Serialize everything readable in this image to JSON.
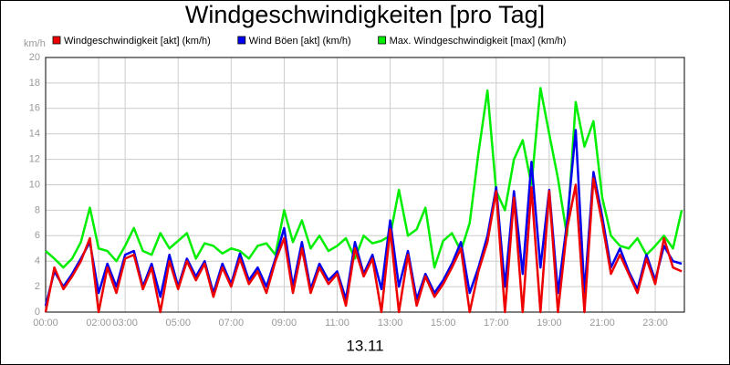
{
  "chart_data": {
    "type": "line",
    "title": "Windgeschwindigkeiten [pro Tag]",
    "y_unit": "km/h",
    "x_label": "13.11",
    "x": [
      0,
      0.33,
      0.67,
      1,
      1.33,
      1.67,
      2,
      2.33,
      2.67,
      3,
      3.33,
      3.67,
      4,
      4.33,
      4.67,
      5,
      5.33,
      5.67,
      6,
      6.33,
      6.67,
      7,
      7.33,
      7.67,
      8,
      8.33,
      8.67,
      9,
      9.33,
      9.67,
      10,
      10.33,
      10.67,
      11,
      11.33,
      11.67,
      12,
      12.33,
      12.67,
      13,
      13.33,
      13.67,
      14,
      14.33,
      14.67,
      15,
      15.33,
      15.67,
      16,
      16.33,
      16.67,
      17,
      17.33,
      17.67,
      18,
      18.33,
      18.67,
      19,
      19.33,
      19.67,
      20,
      20.33,
      20.67,
      21,
      21.33,
      21.67,
      22,
      22.33,
      22.67,
      23,
      23.33,
      23.67,
      24
    ],
    "series": [
      {
        "name": "Windgeschwindigkeit [akt] (km/h)",
        "color": "#ee0000",
        "values": [
          0.0,
          3.5,
          1.8,
          2.8,
          4.0,
          5.8,
          0.0,
          3.5,
          1.5,
          4.2,
          4.5,
          1.8,
          3.5,
          0.0,
          4.0,
          1.8,
          4.0,
          2.5,
          3.8,
          1.2,
          3.5,
          2.0,
          4.2,
          2.2,
          3.2,
          1.5,
          4.0,
          5.8,
          1.5,
          5.0,
          1.5,
          3.5,
          2.2,
          3.0,
          0.5,
          5.0,
          2.8,
          4.2,
          0.0,
          6.5,
          0.0,
          4.5,
          0.5,
          2.8,
          1.2,
          2.2,
          3.5,
          5.0,
          0.0,
          3.2,
          5.5,
          9.5,
          0.0,
          9.0,
          0.0,
          9.8,
          0.0,
          9.5,
          0.0,
          6.5,
          10.0,
          0.0,
          10.5,
          7.0,
          3.0,
          4.5,
          3.0,
          1.5,
          4.2,
          2.2,
          5.8,
          3.5,
          3.2
        ]
      },
      {
        "name": "Wind Böen [akt] (km/h)",
        "color": "#0000ee",
        "values": [
          0.5,
          3.2,
          2.0,
          3.0,
          4.2,
          5.5,
          1.5,
          3.8,
          2.0,
          4.5,
          4.8,
          2.0,
          3.8,
          1.2,
          4.5,
          2.0,
          4.2,
          2.8,
          4.0,
          1.5,
          3.8,
          2.2,
          4.6,
          2.5,
          3.5,
          2.0,
          4.2,
          6.6,
          2.0,
          5.5,
          1.8,
          3.8,
          2.5,
          3.2,
          1.0,
          5.5,
          3.0,
          4.5,
          1.8,
          7.2,
          2.0,
          4.8,
          1.0,
          3.0,
          1.5,
          2.5,
          3.8,
          5.5,
          1.5,
          3.5,
          6.0,
          9.8,
          2.0,
          9.5,
          3.0,
          11.8,
          3.5,
          9.6,
          1.5,
          7.0,
          14.3,
          1.5,
          11.0,
          7.5,
          3.5,
          5.0,
          3.2,
          1.8,
          4.5,
          2.5,
          5.2,
          4.0,
          3.8
        ]
      },
      {
        "name": "Max. Windgeschwindigkeit [max] (km/h)",
        "color": "#00ee00",
        "values": [
          4.8,
          4.2,
          3.5,
          4.2,
          5.5,
          8.2,
          5.0,
          4.8,
          4.0,
          5.2,
          6.6,
          4.8,
          4.5,
          6.2,
          5.0,
          5.6,
          6.2,
          4.2,
          5.4,
          5.2,
          4.6,
          5.0,
          4.8,
          4.2,
          5.2,
          5.4,
          4.5,
          8.0,
          5.5,
          7.2,
          5.0,
          6.0,
          4.8,
          5.2,
          5.8,
          4.2,
          6.0,
          5.4,
          5.6,
          6.0,
          9.6,
          6.0,
          6.5,
          8.2,
          3.5,
          5.6,
          6.2,
          4.8,
          7.0,
          12.5,
          17.4,
          9.5,
          8.0,
          12.0,
          13.5,
          10.0,
          17.6,
          14.0,
          10.5,
          6.0,
          16.5,
          13.0,
          15.0,
          9.0,
          6.0,
          5.2,
          5.0,
          5.8,
          4.5,
          5.2,
          6.0,
          5.0,
          8.0
        ]
      }
    ],
    "xlim": [
      0,
      24.1
    ],
    "ylim": [
      0,
      20
    ],
    "xticks": [
      {
        "value": 0,
        "label": "00:00"
      },
      {
        "value": 2,
        "label": "02:00"
      },
      {
        "value": 3,
        "label": "03:00"
      },
      {
        "value": 5,
        "label": "05:00"
      },
      {
        "value": 7,
        "label": "07:00"
      },
      {
        "value": 9,
        "label": "09:00"
      },
      {
        "value": 11,
        "label": "11:00"
      },
      {
        "value": 13,
        "label": "13:00"
      },
      {
        "value": 15,
        "label": "15:00"
      },
      {
        "value": 17,
        "label": "17:00"
      },
      {
        "value": 19,
        "label": "19:00"
      },
      {
        "value": 21,
        "label": "21:00"
      },
      {
        "value": 23,
        "label": "23:00"
      }
    ],
    "yticks": [
      0,
      2,
      4,
      6,
      8,
      10,
      12,
      14,
      16,
      18,
      20
    ],
    "grid": true
  }
}
